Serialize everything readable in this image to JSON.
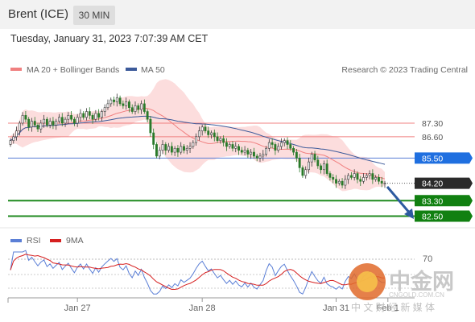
{
  "header": {
    "title": "Brent (ICE)",
    "timeframe": "30 MIN"
  },
  "timestamp": "Tuesday, January 31, 2023 7:07:39 AM CET",
  "legend": {
    "ma20": {
      "label": "MA 20 + Bollinger Bands",
      "color": "#f08080"
    },
    "ma50": {
      "label": "MA 50",
      "color": "#3c5a9a"
    },
    "rsi": {
      "label": "RSI",
      "color": "#5b7fd6"
    },
    "ma9": {
      "label": "9MA",
      "color": "#d62020"
    }
  },
  "copyright": "Research © 2023 Trading Central",
  "watermark": {
    "name": "中金网",
    "domain": "CNGOLD.COM.CN",
    "tagline": "中 文 财 经 新 媒 体"
  },
  "chart_data": {
    "type": "candlestick",
    "ylim": [
      81.9,
      89.5
    ],
    "x_ticks": [
      {
        "label": "Jan 27",
        "index": 22
      },
      {
        "label": "Jan 28",
        "index": 63
      },
      {
        "label": "Jan 31",
        "index": 107
      },
      {
        "label": "Feb 1",
        "index": 124
      }
    ],
    "levels": [
      {
        "value": 87.3,
        "label": "87.30",
        "style": "resistance"
      },
      {
        "value": 86.6,
        "label": "86.60",
        "style": "resistance"
      },
      {
        "value": 85.5,
        "label": "85.50",
        "style": "pivot"
      },
      {
        "value": 84.2,
        "label": "84.20",
        "style": "last"
      },
      {
        "value": 83.3,
        "label": "83.30",
        "style": "support"
      },
      {
        "value": 82.5,
        "label": "82.50",
        "style": "support"
      }
    ],
    "closes": [
      86.4,
      86.6,
      86.9,
      87.3,
      87.7,
      87.5,
      87.1,
      87.4,
      87.2,
      87.0,
      87.3,
      87.5,
      87.2,
      87.4,
      87.2,
      87.4,
      87.6,
      87.3,
      87.5,
      87.7,
      87.5,
      87.3,
      87.6,
      87.8,
      87.6,
      87.9,
      87.7,
      87.5,
      87.8,
      87.6,
      87.9,
      88.1,
      88.3,
      88.5,
      88.4,
      88.6,
      88.3,
      88.2,
      88.4,
      88.1,
      87.9,
      88.2,
      88.0,
      88.3,
      87.9,
      87.5,
      86.8,
      86.2,
      85.6,
      85.9,
      86.2,
      85.9,
      86.1,
      85.8,
      86.0,
      85.8,
      86.1,
      85.9,
      86.0,
      86.1,
      86.3,
      86.6,
      86.9,
      87.1,
      86.9,
      86.7,
      86.8,
      86.6,
      86.4,
      86.5,
      86.3,
      86.1,
      86.2,
      86.0,
      86.1,
      85.9,
      85.8,
      85.9,
      85.7,
      85.8,
      85.6,
      85.5,
      85.6,
      85.7,
      86.0,
      86.3,
      86.2,
      85.9,
      86.1,
      86.3,
      86.4,
      86.2,
      86.0,
      85.8,
      85.5,
      85.0,
      84.6,
      84.9,
      85.3,
      85.7,
      85.4,
      85.1,
      84.9,
      85.2,
      84.7,
      84.5,
      84.4,
      84.2,
      84.3,
      84.1,
      84.4,
      84.6,
      84.5,
      84.7,
      84.4,
      84.3,
      84.5,
      84.6,
      84.7,
      84.4,
      84.5,
      84.3,
      84.2,
      84.2
    ],
    "rsi": {
      "level": 70,
      "level_label": "70"
    }
  }
}
